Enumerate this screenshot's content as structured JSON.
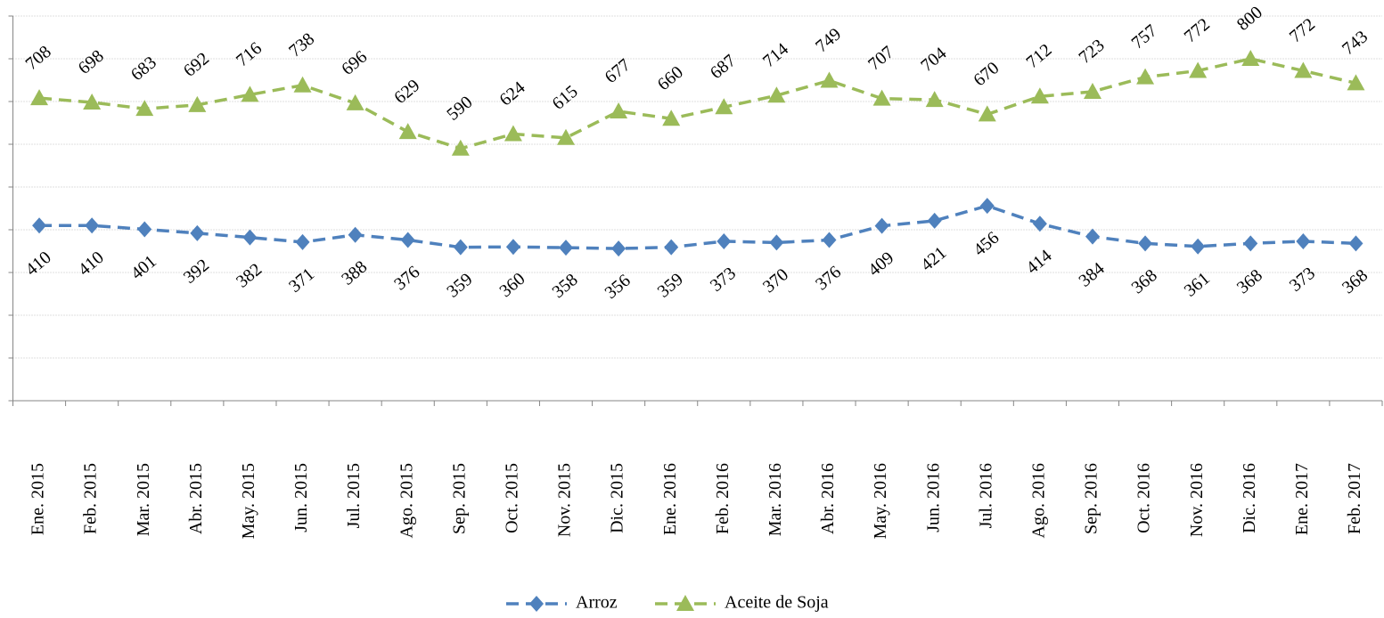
{
  "chart_data": {
    "type": "line",
    "categories": [
      "Ene. 2015",
      "Feb. 2015",
      "Mar. 2015",
      "Abr. 2015",
      "May. 2015",
      "Jun. 2015",
      "Jul. 2015",
      "Ago. 2015",
      "Sep. 2015",
      "Oct. 2015",
      "Nov. 2015",
      "Dic. 2015",
      "Ene. 2016",
      "Feb. 2016",
      "Mar. 2016",
      "Abr. 2016",
      "May. 2016",
      "Jun. 2016",
      "Jul. 2016",
      "Ago. 2016",
      "Sep. 2016",
      "Oct. 2016",
      "Nov. 2016",
      "Dic. 2016",
      "Ene. 2017",
      "Feb. 2017"
    ],
    "series": [
      {
        "name": "Arroz",
        "color": "#4f81bd",
        "marker": "diamond",
        "values": [
          410,
          410,
          401,
          392,
          382,
          371,
          388,
          376,
          359,
          360,
          358,
          356,
          359,
          373,
          370,
          376,
          409,
          421,
          456,
          414,
          384,
          368,
          361,
          368,
          373,
          368
        ]
      },
      {
        "name": "Aceite de Soja",
        "color": "#9bbb59",
        "marker": "triangle",
        "values": [
          708,
          698,
          683,
          692,
          716,
          738,
          696,
          629,
          590,
          624,
          615,
          677,
          660,
          687,
          714,
          749,
          707,
          704,
          670,
          712,
          723,
          757,
          772,
          800,
          772,
          743
        ]
      }
    ],
    "ylim": [
      0,
      900
    ],
    "yticks": [
      0,
      100,
      200,
      300,
      400,
      500,
      600,
      700,
      800,
      900
    ],
    "grid": true,
    "legend": "bottom"
  }
}
